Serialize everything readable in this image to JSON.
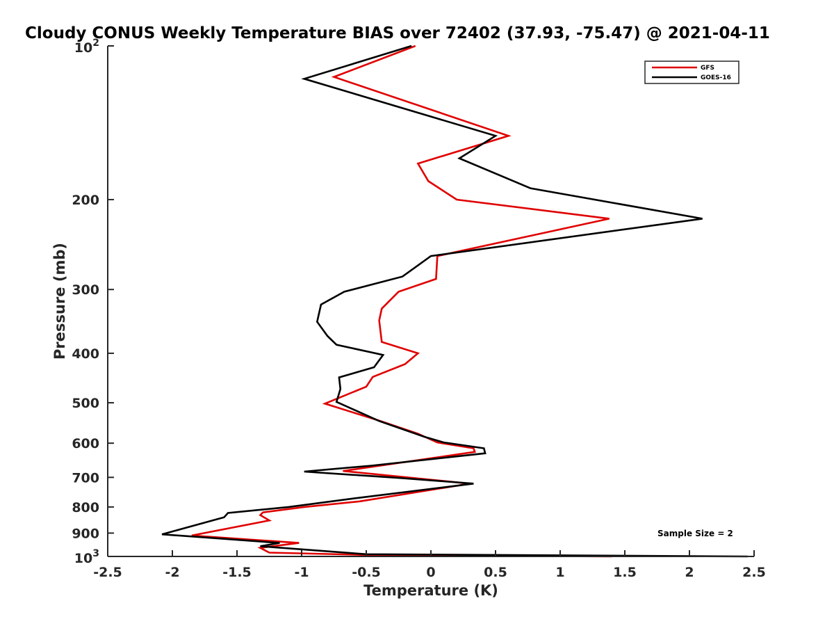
{
  "chart_data": {
    "type": "line",
    "title": "Cloudy CONUS Weekly Temperature BIAS over 72402 (37.93, -75.47) @ 2021-04-11",
    "xlabel": "Temperature (K)",
    "ylabel": "Pressure (mb)",
    "xlim": [
      -2.5,
      2.5
    ],
    "ylim": [
      100,
      1000
    ],
    "y_scale": "log",
    "y_reversed": true,
    "x_ticks": [
      "-2.5",
      "-2",
      "-1.5",
      "-1",
      "-0.5",
      "0",
      "0.5",
      "1",
      "1.5",
      "2",
      "2.5"
    ],
    "y_ticks": [
      {
        "value": 100,
        "base": "10",
        "exp": "2"
      },
      {
        "value": 200,
        "label": "200"
      },
      {
        "value": 300,
        "label": "300"
      },
      {
        "value": 400,
        "label": "400"
      },
      {
        "value": 500,
        "label": "500"
      },
      {
        "value": 600,
        "label": "600"
      },
      {
        "value": 700,
        "label": "700"
      },
      {
        "value": 800,
        "label": "800"
      },
      {
        "value": 900,
        "label": "900"
      },
      {
        "value": 1000,
        "base": "10",
        "exp": "3"
      }
    ],
    "grid": false,
    "legend_position": "top-right",
    "annotation": "Sample Size = 2",
    "series": [
      {
        "name": "GFS",
        "color": "#e00000",
        "points": [
          [
            -0.12,
            100
          ],
          [
            -0.75,
            115
          ],
          [
            0.6,
            150
          ],
          [
            -0.1,
            170
          ],
          [
            -0.02,
            184
          ],
          [
            0.2,
            200
          ],
          [
            1.38,
            218
          ],
          [
            0.05,
            258
          ],
          [
            0.04,
            286
          ],
          [
            -0.25,
            303
          ],
          [
            -0.38,
            327
          ],
          [
            -0.4,
            345
          ],
          [
            -0.38,
            380
          ],
          [
            -0.1,
            400
          ],
          [
            -0.2,
            420
          ],
          [
            -0.45,
            445
          ],
          [
            -0.5,
            465
          ],
          [
            -0.82,
            502
          ],
          [
            -0.4,
            542
          ],
          [
            -0.1,
            575
          ],
          [
            0.05,
            598
          ],
          [
            0.33,
            614
          ],
          [
            0.34,
            624
          ],
          [
            -0.68,
            680
          ],
          [
            0.3,
            720
          ],
          [
            -0.55,
            780
          ],
          [
            -0.98,
            800
          ],
          [
            -1.3,
            820
          ],
          [
            -1.32,
            830
          ],
          [
            -1.25,
            850
          ],
          [
            -1.85,
            910
          ],
          [
            -1.02,
            941
          ],
          [
            -1.32,
            962
          ],
          [
            -1.25,
            983
          ],
          [
            -0.5,
            993
          ],
          [
            1.4,
            1000
          ]
        ]
      },
      {
        "name": "GOES-16",
        "color": "#000000",
        "points": [
          [
            -0.15,
            100
          ],
          [
            -0.98,
            116
          ],
          [
            0.5,
            150
          ],
          [
            0.22,
            166
          ],
          [
            0.77,
            190
          ],
          [
            2.1,
            218
          ],
          [
            0.0,
            258
          ],
          [
            -0.22,
            283
          ],
          [
            -0.67,
            303
          ],
          [
            -0.85,
            321
          ],
          [
            -0.88,
            347
          ],
          [
            -0.8,
            370
          ],
          [
            -0.73,
            385
          ],
          [
            -0.37,
            403
          ],
          [
            -0.44,
            426
          ],
          [
            -0.71,
            446
          ],
          [
            -0.7,
            470
          ],
          [
            -0.73,
            498
          ],
          [
            -0.4,
            543
          ],
          [
            -0.05,
            583
          ],
          [
            0.1,
            598
          ],
          [
            0.41,
            614
          ],
          [
            0.42,
            628
          ],
          [
            -0.46,
            664
          ],
          [
            -0.98,
            682
          ],
          [
            -0.24,
            702
          ],
          [
            0.33,
            720
          ],
          [
            -0.6,
            770
          ],
          [
            -1.1,
            800
          ],
          [
            -1.57,
            822
          ],
          [
            -1.6,
            838
          ],
          [
            -1.65,
            845
          ],
          [
            -2.08,
            905
          ],
          [
            -1.17,
            941
          ],
          [
            -1.32,
            955
          ],
          [
            -0.5,
            990
          ],
          [
            2.45,
            1000
          ]
        ]
      }
    ]
  }
}
